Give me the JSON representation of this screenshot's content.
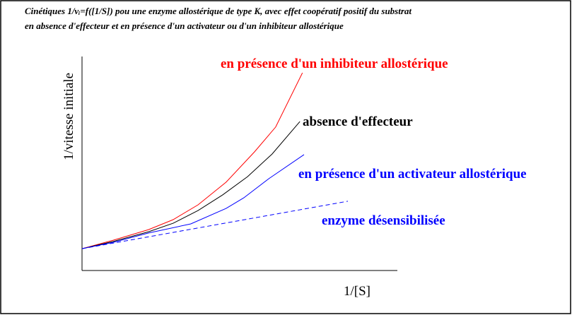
{
  "chart_data": {
    "type": "line",
    "title": [
      "Cinétiques 1/vᵢ=f([1/S]) pou une enzyme allostérique  de type K, avec effet coopératif positif du substrat",
      "en absence d'effecteur et en présence d'un activateur ou d'un inhibiteur allostérique"
    ],
    "x_label": "1/[S]",
    "y_label": "1/vitesse initiale",
    "xlim": [
      0,
      100
    ],
    "ylim": [
      0,
      100
    ],
    "series": [
      {
        "name": "en présence d'un inhibiteur allostérique",
        "color": "#ff0000",
        "dash": false,
        "x": [
          0,
          9.9,
          21.1,
          28.9,
          36.8,
          45.7,
          54.7,
          61.4,
          69.9
        ],
        "values": [
          10.3,
          14.3,
          19.3,
          24,
          31,
          41.7,
          56,
          67.7,
          93.3
        ]
      },
      {
        "name": "absence d'effecteur",
        "color": "#000000",
        "dash": false,
        "x": [
          0,
          9.9,
          21.1,
          28.9,
          36.8,
          44.6,
          52.5,
          60.3,
          69.1
        ],
        "values": [
          10.3,
          13.7,
          18.3,
          22.3,
          28.3,
          35.7,
          44.3,
          55,
          70.3
        ]
      },
      {
        "name": "en présence d'un activateur allostérique",
        "color": "#0000ff",
        "dash": false,
        "x": [
          0,
          9.9,
          21.1,
          34.5,
          45.7,
          51.3,
          59.2,
          70.4
        ],
        "values": [
          10.3,
          13.3,
          17.7,
          22,
          29.3,
          34.3,
          43.3,
          54.7
        ]
      },
      {
        "name": "enzyme désensibilisée",
        "color": "#0000ff",
        "dash": true,
        "x": [
          0,
          84.3
        ],
        "values": [
          10.3,
          32.7
        ]
      }
    ]
  }
}
